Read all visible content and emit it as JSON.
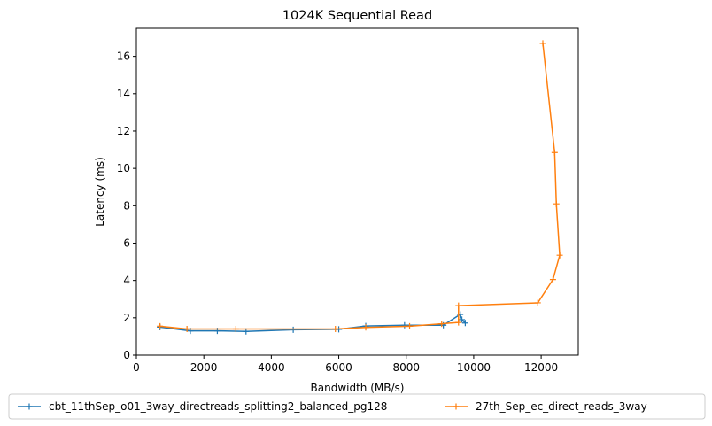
{
  "chart_data": {
    "type": "line",
    "title": "1024K  Sequential Read",
    "xlabel": "Bandwidth (MB/s)",
    "ylabel": "Latency (ms)",
    "xlim": [
      0,
      13100
    ],
    "ylim": [
      0,
      17.5
    ],
    "xticks": [
      0,
      2000,
      4000,
      6000,
      8000,
      10000,
      12000
    ],
    "yticks": [
      0,
      2,
      4,
      6,
      8,
      10,
      12,
      14,
      16
    ],
    "grid": false,
    "legend_position": "bottom-center",
    "series": [
      {
        "name": "cbt_11thSep_o01_3way_directreads_splitting2_balanced_pg128",
        "color": "#1f77b4",
        "marker": "+",
        "x": [
          700,
          1600,
          2400,
          3250,
          4650,
          6000,
          6800,
          7950,
          9100,
          9600,
          9650,
          9750
        ],
        "y": [
          1.5,
          1.3,
          1.3,
          1.27,
          1.36,
          1.38,
          1.56,
          1.6,
          1.6,
          2.18,
          1.9,
          1.72
        ]
      },
      {
        "name": "27th_Sep_ec_direct_reads_3way",
        "color": "#ff7f0e",
        "marker": "+",
        "x": [
          700,
          1500,
          2950,
          5900,
          6800,
          8100,
          9050,
          9550,
          9550,
          11900,
          12350,
          12550,
          12450,
          12400,
          12050
        ],
        "y": [
          1.55,
          1.4,
          1.4,
          1.4,
          1.48,
          1.55,
          1.68,
          1.75,
          2.65,
          2.8,
          4.05,
          5.35,
          8.1,
          10.85,
          16.7
        ]
      }
    ]
  }
}
